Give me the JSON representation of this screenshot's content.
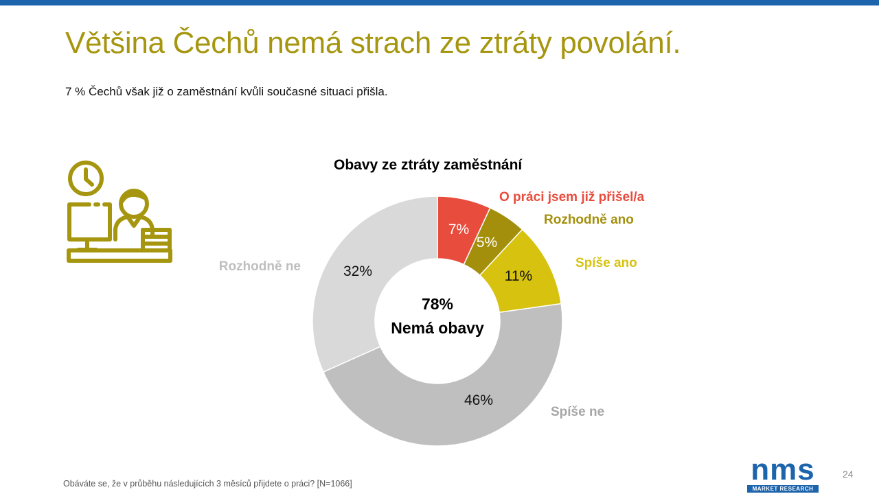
{
  "slide": {
    "title": "Většina Čechů nemá strach ze ztráty povolání.",
    "subtitle": "7 % Čechů však již o zaměstnání kvůli současné situaci přišla.",
    "footnote": "Obáváte se, že v průběhu  následujících 3 měsíců přijdete o práci? [N=1066]",
    "page_number": "24",
    "colors": {
      "accent": "#a6960f",
      "top_bar": "#1c64ac",
      "logo_blue": "#1c64ac"
    },
    "icon": "person-at-computer-with-clock-icon"
  },
  "logo": {
    "text": "nms",
    "tagline": "MARKET RESEARCH"
  },
  "chart_data": {
    "type": "pie",
    "variant": "donut",
    "title": "Obavy ze ztráty zaměstnání",
    "center_label": {
      "value": "78%",
      "text": "Nemá obavy"
    },
    "slices": [
      {
        "label": "O práci jsem již přišel/a",
        "value": 7,
        "value_label": "7%",
        "color": "#e84c3d",
        "label_color": "#e84c3d",
        "value_label_color": "#ffffff"
      },
      {
        "label": "Rozhodně ano",
        "value": 5,
        "value_label": "5%",
        "color": "#a38f0b",
        "label_color": "#a38f0b",
        "value_label_color": "#ffffff"
      },
      {
        "label": "Spíše ano",
        "value": 11,
        "value_label": "11%",
        "color": "#d6c20f",
        "label_color": "#d6c20f",
        "value_label_color": "#111111"
      },
      {
        "label": "Spíše ne",
        "value": 46,
        "value_label": "46%",
        "color": "#bfbfbf",
        "label_color": "#a6a6a6",
        "value_label_color": "#111111"
      },
      {
        "label": "Rozhodně ne",
        "value": 32,
        "value_label": "32%",
        "color": "#d9d9d9",
        "label_color": "#bfbfbf",
        "value_label_color": "#111111"
      }
    ]
  }
}
